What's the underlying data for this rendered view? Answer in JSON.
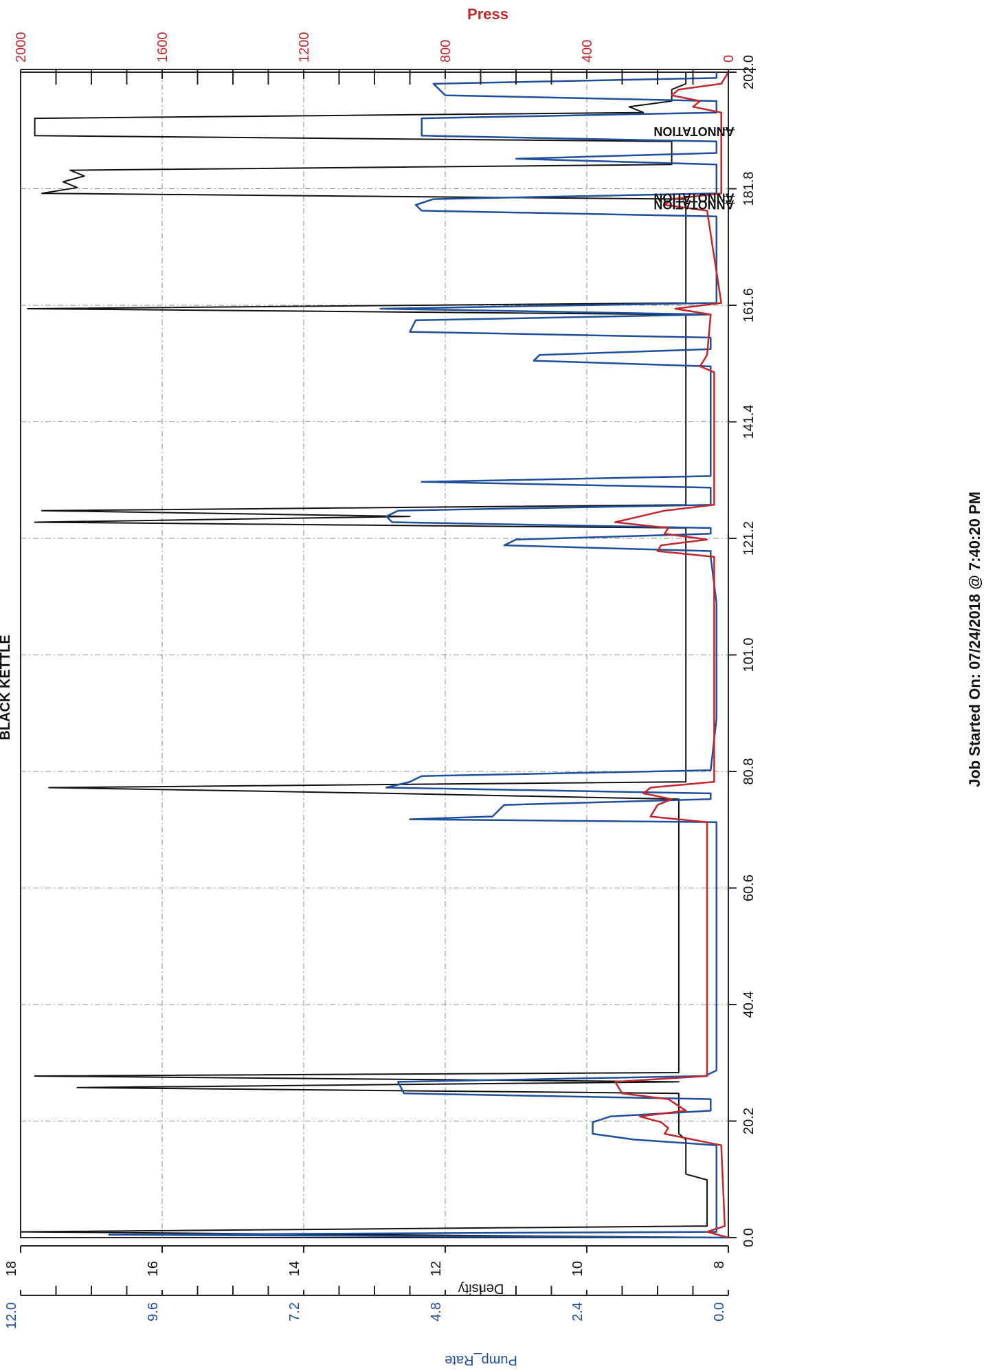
{
  "chart_data": {
    "type": "line",
    "title": "BLACK KETTLE",
    "xlabel": "Job Started On: 07/24/2018 @ 7:40:20 PM",
    "x_ticks": [
      "0.0",
      "20.2",
      "40.4",
      "60.6",
      "80.8",
      "101.0",
      "121.2",
      "141.4",
      "161.6",
      "181.8",
      "202.0"
    ],
    "xlim": [
      0,
      202
    ],
    "axes": {
      "press": {
        "label": "Press",
        "ticks": [
          "0",
          "400",
          "800",
          "1200",
          "1600",
          "2000"
        ],
        "range": [
          0,
          2000
        ],
        "color": "#c0282d"
      },
      "density": {
        "label": "Density",
        "ticks": [
          "8",
          "10",
          "12",
          "14",
          "16",
          "18"
        ],
        "range": [
          8,
          18
        ],
        "color": "#111111"
      },
      "pump_rate": {
        "label": "Pump_Rate",
        "ticks": [
          "0.0",
          "2.4",
          "4.8",
          "7.2",
          "9.6",
          "12.0"
        ],
        "range": [
          0,
          12
        ],
        "color": "#1f4e9c"
      }
    },
    "annotations": [
      "ANNOTATION",
      "ANNOTATION",
      "ANNOTATION"
    ],
    "grid": true,
    "orientation": "rotated 90 degrees clockwise; x (time) runs bottom to top",
    "series": [
      {
        "axis": "density",
        "color": "#111111",
        "points": [
          [
            0,
            8.0
          ],
          [
            1,
            18.0
          ],
          [
            2,
            8.3
          ],
          [
            10,
            8.3
          ],
          [
            11,
            8.6
          ],
          [
            17,
            8.6
          ],
          [
            18,
            8.7
          ],
          [
            25,
            8.7
          ],
          [
            26,
            17.2
          ],
          [
            27,
            8.7
          ],
          [
            28,
            17.8
          ],
          [
            28.6,
            8.7
          ],
          [
            76,
            8.7
          ],
          [
            77,
            12.8
          ],
          [
            78,
            17.6
          ],
          [
            79,
            8.6
          ],
          [
            123,
            8.6
          ],
          [
            124,
            17.8
          ],
          [
            125,
            12.5
          ],
          [
            126,
            17.7
          ],
          [
            127,
            8.6
          ],
          [
            160,
            8.6
          ],
          [
            161,
            17.9
          ],
          [
            162,
            8.6
          ],
          [
            180,
            8.6
          ],
          [
            181,
            17.7
          ],
          [
            182,
            17.2
          ],
          [
            183,
            17.4
          ],
          [
            184,
            17.1
          ],
          [
            185,
            17.3
          ],
          [
            186,
            8.8
          ],
          [
            190,
            8.8
          ],
          [
            191,
            17.8
          ],
          [
            194,
            17.8
          ],
          [
            195,
            9.2
          ],
          [
            196,
            9.4
          ],
          [
            197,
            8.8
          ],
          [
            199,
            8.8
          ],
          [
            200,
            8.6
          ],
          [
            202,
            8.6
          ]
        ]
      },
      {
        "axis": "pump_rate",
        "color": "#1f4e9c",
        "points": [
          [
            0,
            0.0
          ],
          [
            0.5,
            10.5
          ],
          [
            1,
            0.2
          ],
          [
            10,
            0.2
          ],
          [
            16,
            0.2
          ],
          [
            17,
            1.6
          ],
          [
            18,
            2.3
          ],
          [
            20,
            2.3
          ],
          [
            21,
            2.0
          ],
          [
            22,
            0.3
          ],
          [
            24,
            0.3
          ],
          [
            25,
            5.5
          ],
          [
            27,
            5.6
          ],
          [
            28,
            0.4
          ],
          [
            29,
            0.2
          ],
          [
            41,
            0.2
          ],
          [
            50,
            0.2
          ],
          [
            57,
            0.2
          ],
          [
            64,
            0.2
          ],
          [
            72,
            0.2
          ],
          [
            72.5,
            5.4
          ],
          [
            73,
            4.0
          ],
          [
            75,
            3.8
          ],
          [
            76,
            0.3
          ],
          [
            77,
            0.3
          ],
          [
            78,
            5.8
          ],
          [
            79,
            5.4
          ],
          [
            80,
            5.2
          ],
          [
            81,
            0.3
          ],
          [
            90,
            0.2
          ],
          [
            110,
            0.2
          ],
          [
            118,
            0.3
          ],
          [
            119,
            0.3
          ],
          [
            120,
            3.8
          ],
          [
            121,
            3.6
          ],
          [
            122,
            0.3
          ],
          [
            123,
            0.3
          ],
          [
            124,
            5.7
          ],
          [
            125,
            5.8
          ],
          [
            126,
            5.6
          ],
          [
            127,
            0.3
          ],
          [
            130,
            0.3
          ],
          [
            131,
            5.2
          ],
          [
            132,
            0.3
          ],
          [
            151,
            0.3
          ],
          [
            152,
            3.3
          ],
          [
            153,
            3.2
          ],
          [
            154,
            0.3
          ],
          [
            156,
            0.3
          ],
          [
            157,
            5.4
          ],
          [
            159,
            5.3
          ],
          [
            160,
            0.3
          ],
          [
            161,
            5.9
          ],
          [
            162,
            0.2
          ],
          [
            177,
            0.2
          ],
          [
            178,
            5.2
          ],
          [
            179,
            5.3
          ],
          [
            180,
            5.0
          ],
          [
            181,
            0.2
          ],
          [
            186,
            0.2
          ],
          [
            187,
            3.6
          ],
          [
            188,
            0.2
          ],
          [
            190,
            0.2
          ],
          [
            191,
            5.2
          ],
          [
            194,
            5.2
          ],
          [
            195,
            0.2
          ],
          [
            197,
            0.2
          ],
          [
            198,
            4.8
          ],
          [
            200,
            5.0
          ],
          [
            201,
            0.2
          ],
          [
            202,
            0.2
          ]
        ]
      },
      {
        "axis": "press",
        "color": "#c0282d",
        "points": [
          [
            0,
            0
          ],
          [
            1,
            60
          ],
          [
            2,
            10
          ],
          [
            16,
            20
          ],
          [
            18,
            180
          ],
          [
            19,
            170
          ],
          [
            20,
            190
          ],
          [
            21,
            250
          ],
          [
            22,
            120
          ],
          [
            24,
            170
          ],
          [
            25,
            300
          ],
          [
            27,
            320
          ],
          [
            28,
            60
          ],
          [
            40,
            60
          ],
          [
            60,
            60
          ],
          [
            72,
            60
          ],
          [
            73,
            220
          ],
          [
            75,
            200
          ],
          [
            76,
            160
          ],
          [
            77,
            240
          ],
          [
            78,
            220
          ],
          [
            79,
            40
          ],
          [
            118,
            40
          ],
          [
            119,
            200
          ],
          [
            120,
            190
          ],
          [
            121,
            60
          ],
          [
            122,
            180
          ],
          [
            123,
            170
          ],
          [
            124,
            320
          ],
          [
            126,
            180
          ],
          [
            127,
            40
          ],
          [
            150,
            40
          ],
          [
            151,
            80
          ],
          [
            153,
            60
          ],
          [
            160,
            50
          ],
          [
            161,
            150
          ],
          [
            162,
            20
          ],
          [
            178,
            60
          ],
          [
            179,
            180
          ],
          [
            180,
            160
          ],
          [
            181,
            20
          ],
          [
            195,
            20
          ],
          [
            196,
            100
          ],
          [
            197,
            80
          ],
          [
            198,
            160
          ],
          [
            199,
            140
          ],
          [
            200,
            20
          ],
          [
            202,
            0
          ]
        ]
      }
    ]
  }
}
